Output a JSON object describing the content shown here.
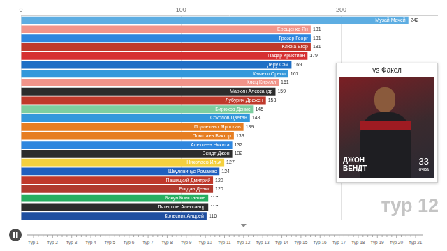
{
  "chart_data": {
    "type": "bar",
    "orientation": "horizontal",
    "categories": [
      "Музай Мачей",
      "Ерещенко Ян",
      "Грозер Георг",
      "Клюка Егор",
      "Падар Кристиан",
      "Деру Сэм",
      "Камехо Ореол",
      "Клец Кирилл",
      "Маркин Александр",
      "Лубурич Дражен",
      "Бирюков Денис",
      "Соколов Цветан",
      "Подлесных Ярослав",
      "Повстаев Виктор",
      "Алексеев Никита",
      "Вендт Джон",
      "Николаев Илья",
      "Шкулявичус Романас",
      "Пашицкий Дмитрий",
      "Богдан Денис",
      "Бакун Константин",
      "Пятыркин Александр",
      "Колесник Андрей"
    ],
    "values": [
      242,
      181,
      181,
      181,
      179,
      169,
      167,
      161,
      159,
      153,
      145,
      143,
      139,
      133,
      132,
      132,
      127,
      124,
      120,
      120,
      117,
      117,
      116
    ],
    "colors": [
      "#5dade2",
      "#f1948a",
      "#2e86de",
      "#c0392b",
      "#d63031",
      "#1f6fc5",
      "#3498db",
      "#f1948a",
      "#2c2c2c",
      "#c0392b",
      "#7dcea0",
      "#3498db",
      "#e67e22",
      "#e67e22",
      "#2e86de",
      "#2c2c2c",
      "#f4d03f",
      "#1f5fbf",
      "#c0392b",
      "#b03a2e",
      "#27ae60",
      "#2c2c2c",
      "#1f4fa0"
    ],
    "xlim": [
      0,
      260
    ],
    "xticks": [
      0,
      100,
      200
    ],
    "grid": true,
    "data_labels": true
  },
  "overlay": {
    "round": "тур 12",
    "timeline": [
      "тур 1",
      "тур 2",
      "тур 3",
      "тур 4",
      "тур 5",
      "тур 6",
      "тур 7",
      "тур 8",
      "тур 9",
      "тур 10",
      "тур 11",
      "тур 12",
      "тур 13",
      "тур 14",
      "тур 15",
      "тур 16",
      "тур 17",
      "тур 18",
      "тур 19",
      "тур 20",
      "тур 21"
    ],
    "card": {
      "opponent": "vs Факел",
      "player": "ДЖОН ВЕНДТ",
      "points": 33,
      "points_unit": "очка"
    }
  }
}
